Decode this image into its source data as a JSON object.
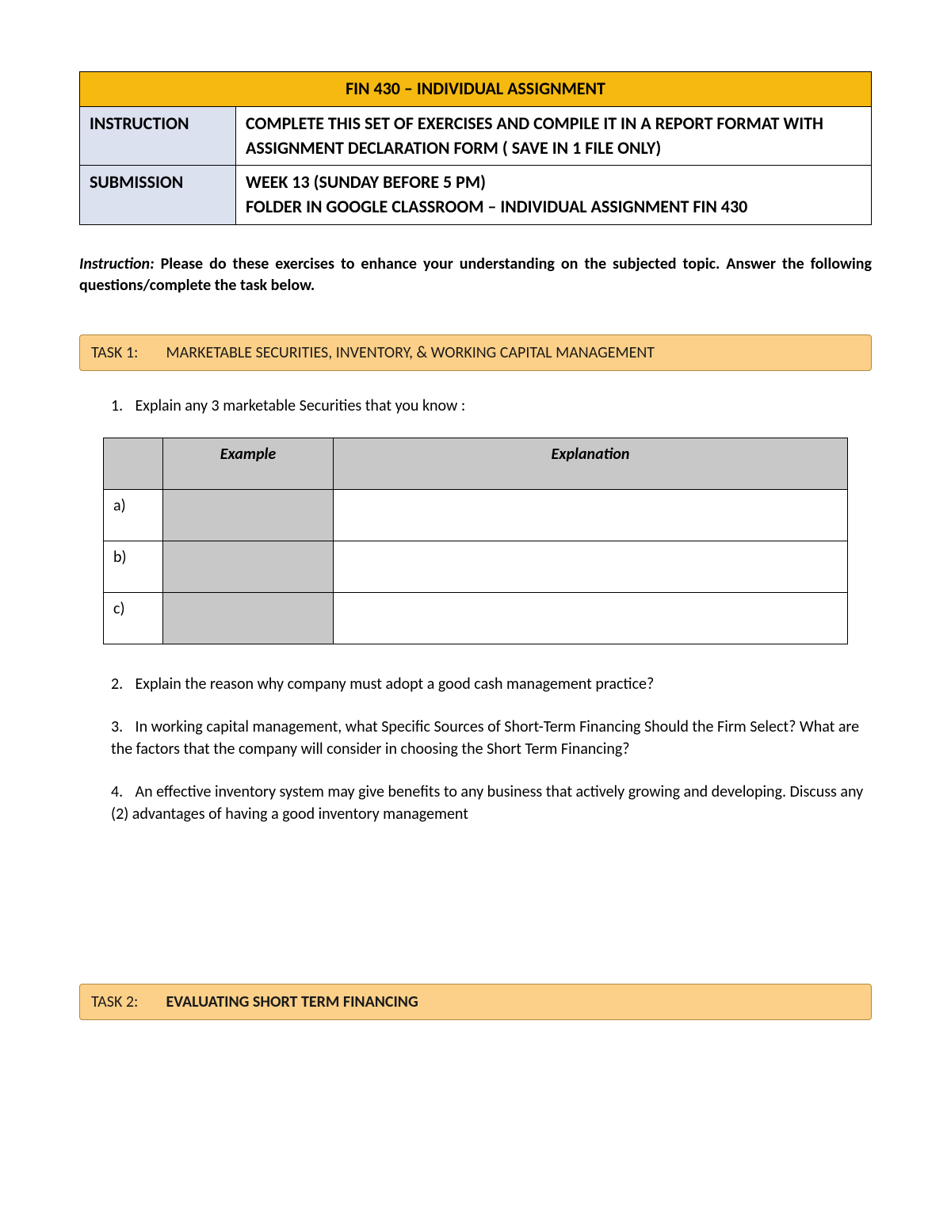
{
  "header": {
    "title": "FIN 430 – INDIVIDUAL ASSIGNMENT",
    "title_bg": "#f5b90f",
    "rows": [
      {
        "label": "INSTRUCTION",
        "value": "COMPLETE THIS SET OF EXERCISES AND COMPILE IT IN A REPORT FORMAT WITH ASSIGNMENT DECLARATION FORM ( SAVE IN 1 FILE ONLY)"
      },
      {
        "label": "SUBMISSION",
        "value": "WEEK 13 (SUNDAY BEFORE 5 PM)\nFOLDER IN GOOGLE CLASSROOM – INDIVIDUAL ASSIGNMENT FIN 430"
      }
    ],
    "label_bg": "#dbe1ef",
    "border_color": "#000000",
    "font_color": "#000000"
  },
  "instruction_para": {
    "lead": "Instruction:",
    "body": " Please do these exercises to enhance your understanding on the subjected topic. Answer the following questions/complete the task below."
  },
  "task1": {
    "banner_label": "TASK 1:",
    "banner_title": "MARKETABLE SECURITIES, INVENTORY, & WORKING CAPITAL MANAGEMENT",
    "banner_bg": "#fcd088",
    "banner_border": "#b0893d",
    "q1": {
      "num": "1.",
      "text": "Explain any  3 marketable Securities that you know :"
    },
    "table": {
      "headers": {
        "blank": "",
        "example": "Example",
        "explanation": "Explanation"
      },
      "header_bg": "#c8c8c8",
      "example_bg": "#c8c8c8",
      "col_widths": {
        "index": "50px",
        "example": "190px",
        "explanation": "auto"
      },
      "rows": [
        {
          "index": "a)",
          "example": "",
          "explanation": ""
        },
        {
          "index": "b)",
          "example": "",
          "explanation": ""
        },
        {
          "index": "c)",
          "example": "",
          "explanation": ""
        }
      ]
    },
    "q2": {
      "num": "2.",
      "text": "Explain the reason why company must adopt a good cash management practice?"
    },
    "q3": {
      "num": "3.",
      "text": "In working capital management, what Specific Sources of Short-Term Financing Should the Firm Select? What are the factors that the company will consider in choosing the Short Term Financing?"
    },
    "q4": {
      "num": "4.",
      "text": "An effective inventory system may give benefits to any business that actively growing and developing. Discuss any (2) advantages of having a good inventory management"
    }
  },
  "task2": {
    "banner_label": "TASK 2:",
    "banner_title": "EVALUATING SHORT TERM FINANCING",
    "banner_bg": "#fcd088",
    "banner_border": "#b0893d"
  },
  "page_bg": "#ffffff"
}
